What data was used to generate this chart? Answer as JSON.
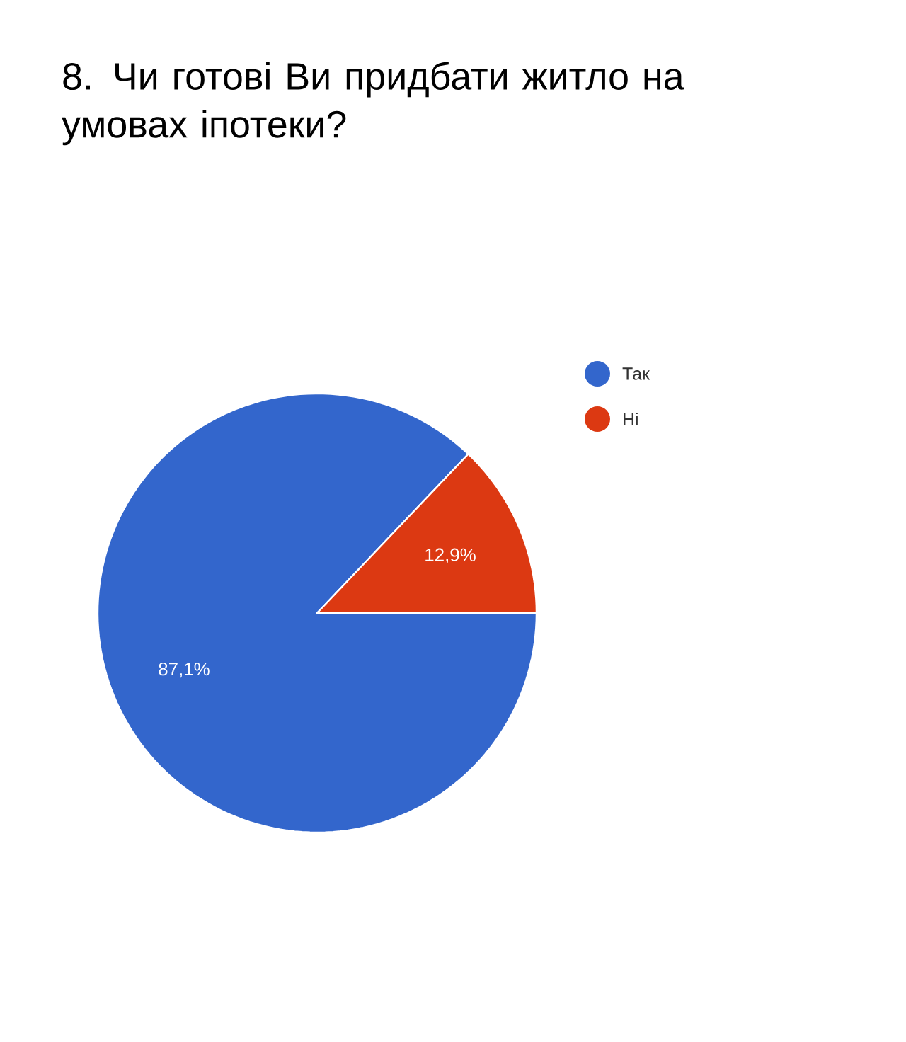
{
  "chart_data": {
    "type": "pie",
    "title": "8. Чи готові Ви придбати житло на умовах іпотеки?",
    "categories": [
      "Так",
      "Ні"
    ],
    "values": [
      87.1,
      12.9
    ],
    "colors": [
      "#3366cc",
      "#dc3912"
    ],
    "value_labels": [
      "87,1%",
      "12,9%"
    ],
    "legend": "top right"
  }
}
